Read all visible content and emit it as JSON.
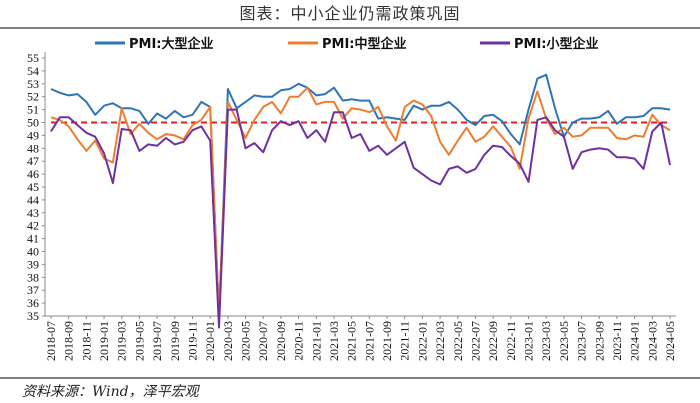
{
  "title": "图表：中小企业仍需政策巩固",
  "source": "资料来源：Wind，泽平宏观",
  "chart_data": {
    "type": "line",
    "title": "图表：中小企业仍需政策巩固",
    "xlabel": "",
    "ylabel": "",
    "ylim": [
      35,
      55
    ],
    "y_ticks": [
      35,
      36,
      37,
      38,
      39,
      40,
      41,
      42,
      43,
      44,
      45,
      46,
      47,
      48,
      49,
      50,
      51,
      52,
      53,
      54,
      55
    ],
    "x": [
      "2018-07",
      "2018-08",
      "2018-09",
      "2018-10",
      "2018-11",
      "2018-12",
      "2019-01",
      "2019-02",
      "2019-03",
      "2019-04",
      "2019-05",
      "2019-06",
      "2019-07",
      "2019-08",
      "2019-09",
      "2019-10",
      "2019-11",
      "2019-12",
      "2020-01",
      "2020-02",
      "2020-03",
      "2020-04",
      "2020-05",
      "2020-06",
      "2020-07",
      "2020-08",
      "2020-09",
      "2020-10",
      "2020-11",
      "2020-12",
      "2021-01",
      "2021-02",
      "2021-03",
      "2021-04",
      "2021-05",
      "2021-06",
      "2021-07",
      "2021-08",
      "2021-09",
      "2021-10",
      "2021-11",
      "2021-12",
      "2022-01",
      "2022-02",
      "2022-03",
      "2022-04",
      "2022-05",
      "2022-06",
      "2022-07",
      "2022-08",
      "2022-09",
      "2022-10",
      "2022-11",
      "2022-12",
      "2023-01",
      "2023-02",
      "2023-03",
      "2023-04",
      "2023-05",
      "2023-06",
      "2023-07",
      "2023-08",
      "2023-09",
      "2023-10",
      "2023-11",
      "2023-12",
      "2024-01",
      "2024-02",
      "2024-03",
      "2024-04",
      "2024-05"
    ],
    "x_tick_labels": [
      "2018-07",
      "2018-09",
      "2018-11",
      "2019-01",
      "2019-03",
      "2019-05",
      "2019-07",
      "2019-09",
      "2019-11",
      "2020-01",
      "2020-03",
      "2020-05",
      "2020-07",
      "2020-09",
      "2020-11",
      "2021-01",
      "2021-03",
      "2021-05",
      "2021-07",
      "2021-09",
      "2021-11",
      "2022-01",
      "2022-03",
      "2022-05",
      "2022-07",
      "2022-09",
      "2022-11",
      "2023-01",
      "2023-03",
      "2023-05",
      "2023-07",
      "2023-09",
      "2023-11",
      "2024-01",
      "2024-03",
      "2024-05"
    ],
    "legend": "top",
    "grid": false,
    "series": [
      {
        "name": "PMI:大型企业",
        "color": "#2e75b6",
        "values": [
          52.6,
          52.3,
          52.1,
          52.2,
          51.6,
          50.6,
          51.3,
          51.5,
          51.1,
          51.1,
          50.9,
          49.9,
          50.7,
          50.3,
          50.9,
          50.4,
          50.6,
          51.6,
          51.2,
          35.0,
          52.6,
          51.1,
          51.6,
          52.1,
          52.0,
          52.0,
          52.5,
          52.6,
          53.0,
          52.7,
          52.1,
          52.2,
          52.7,
          51.7,
          51.8,
          51.7,
          51.7,
          50.3,
          50.4,
          50.3,
          50.2,
          51.3,
          51.0,
          51.3,
          51.3,
          51.6,
          51.0,
          50.2,
          49.8,
          50.5,
          50.6,
          50.1,
          49.1,
          48.3,
          51.0,
          53.4,
          53.7,
          51.1,
          48.9,
          50.0,
          50.3,
          50.3,
          50.4,
          50.9,
          49.9,
          50.4,
          50.4,
          50.5,
          51.1,
          51.1,
          51.0
        ]
      },
      {
        "name": "PMI:中型企业",
        "color": "#ed7d31",
        "values": [
          50.4,
          50.2,
          49.7,
          48.7,
          47.8,
          48.6,
          47.2,
          46.9,
          51.1,
          49.1,
          49.9,
          49.2,
          48.7,
          49.1,
          49.0,
          48.7,
          49.8,
          50.2,
          51.2,
          35.0,
          51.6,
          50.2,
          48.8,
          50.2,
          51.2,
          51.6,
          50.7,
          52.0,
          52.0,
          52.7,
          51.4,
          51.6,
          51.6,
          50.3,
          51.1,
          51.0,
          50.8,
          51.2,
          49.7,
          48.6,
          51.2,
          51.7,
          51.4,
          50.5,
          48.5,
          47.5,
          48.6,
          49.6,
          48.5,
          48.9,
          49.7,
          48.9,
          48.1,
          46.4,
          50.3,
          52.4,
          50.3,
          49.1,
          49.6,
          48.9,
          49.0,
          49.6,
          49.6,
          49.6,
          48.8,
          48.7,
          49.0,
          48.9,
          50.6,
          49.8,
          49.4
        ]
      },
      {
        "name": "PMI:小型企业",
        "color": "#7030a0",
        "values": [
          49.3,
          50.4,
          50.4,
          49.8,
          49.2,
          48.9,
          47.6,
          45.3,
          49.5,
          49.4,
          47.8,
          48.3,
          48.2,
          48.8,
          48.3,
          48.5,
          49.4,
          49.7,
          48.6,
          34.1,
          51.0,
          51.0,
          48.0,
          48.4,
          47.7,
          49.4,
          50.1,
          49.8,
          50.1,
          48.8,
          49.4,
          48.5,
          50.8,
          50.8,
          48.8,
          49.1,
          47.8,
          48.2,
          47.5,
          48.0,
          48.5,
          46.5,
          46.0,
          45.5,
          45.2,
          46.4,
          46.6,
          46.1,
          46.4,
          47.5,
          48.2,
          48.1,
          47.4,
          46.8,
          45.4,
          50.2,
          50.4,
          49.4,
          48.9,
          46.4,
          47.7,
          47.9,
          48.0,
          47.9,
          47.3,
          47.3,
          47.2,
          46.4,
          49.3,
          50.0,
          46.7
        ]
      },
      {
        "name": "",
        "color": "#e02020",
        "style": "dashed",
        "values": [
          50,
          50,
          50,
          50,
          50,
          50,
          50,
          50,
          50,
          50,
          50,
          50,
          50,
          50,
          50,
          50,
          50,
          50,
          50,
          50,
          50,
          50,
          50,
          50,
          50,
          50,
          50,
          50,
          50,
          50,
          50,
          50,
          50,
          50,
          50,
          50,
          50,
          50,
          50,
          50,
          50,
          50,
          50,
          50,
          50,
          50,
          50,
          50,
          50,
          50,
          50,
          50,
          50,
          50,
          50,
          50,
          50,
          50,
          50,
          50,
          50,
          50,
          50,
          50,
          50,
          50,
          50,
          50,
          50,
          50,
          50
        ]
      }
    ]
  }
}
